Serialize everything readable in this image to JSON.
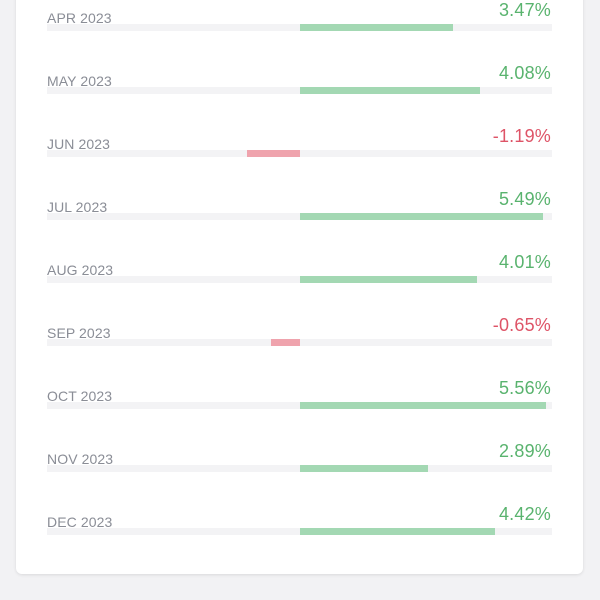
{
  "colors": {
    "positive_text": "#59b36e",
    "negative_text": "#de5467",
    "positive_bar": "#a3d8b3",
    "negative_bar": "#efa3ad",
    "track": "#f3f3f5"
  },
  "scale": {
    "max_abs_percent": 5.7
  },
  "rows": [
    {
      "label": "APR 2023",
      "value_text": "3.47%",
      "value": 3.47
    },
    {
      "label": "MAY 2023",
      "value_text": "4.08%",
      "value": 4.08
    },
    {
      "label": "JUN 2023",
      "value_text": "-1.19%",
      "value": -1.19
    },
    {
      "label": "JUL 2023",
      "value_text": "5.49%",
      "value": 5.49
    },
    {
      "label": "AUG 2023",
      "value_text": "4.01%",
      "value": 4.01
    },
    {
      "label": "SEP 2023",
      "value_text": "-0.65%",
      "value": -0.65
    },
    {
      "label": "OCT 2023",
      "value_text": "5.56%",
      "value": 5.56
    },
    {
      "label": "NOV 2023",
      "value_text": "2.89%",
      "value": 2.89
    },
    {
      "label": "DEC 2023",
      "value_text": "4.42%",
      "value": 4.42
    }
  ]
}
